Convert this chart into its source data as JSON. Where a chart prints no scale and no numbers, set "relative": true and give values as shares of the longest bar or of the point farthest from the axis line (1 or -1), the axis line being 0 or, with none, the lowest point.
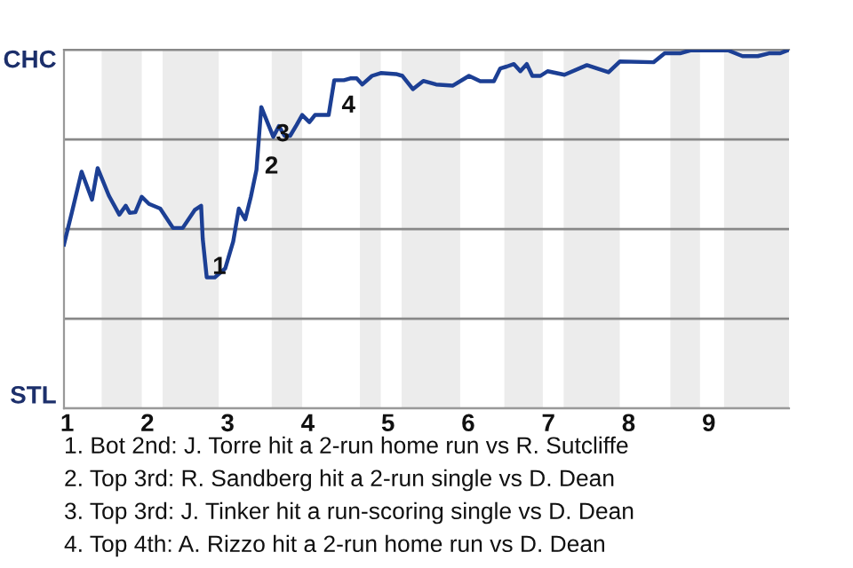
{
  "chart_data": {
    "type": "line",
    "relative": true,
    "x": [
      0.96,
      1.06,
      1.18,
      1.31,
      1.38,
      1.52,
      1.65,
      1.73,
      1.78,
      1.85,
      1.93,
      2.02,
      2.16,
      2.32,
      2.44,
      2.59,
      2.67,
      2.69,
      2.74,
      2.84,
      2.97,
      3.07,
      3.14,
      3.22,
      3.29,
      3.36,
      3.42,
      3.51,
      3.57,
      3.64,
      3.71,
      3.78,
      3.86,
      3.93,
      4.02,
      4.09,
      4.26,
      4.33,
      4.45,
      4.53,
      4.61,
      4.68,
      4.8,
      4.91,
      5.1,
      5.18,
      5.31,
      5.44,
      5.6,
      5.81,
      6.01,
      6.15,
      6.32,
      6.4,
      6.48,
      6.57,
      6.65,
      6.73,
      6.8,
      6.9,
      6.99,
      7.2,
      7.48,
      7.75,
      7.89,
      8.31,
      8.45,
      8.64,
      8.77,
      9.24,
      9.42,
      9.61,
      9.75,
      9.89,
      10.0
    ],
    "series": [
      {
        "color": "#1c3f94",
        "values": [
          0.457,
          0.548,
          0.66,
          0.582,
          0.67,
          0.593,
          0.54,
          0.565,
          0.545,
          0.547,
          0.59,
          0.57,
          0.557,
          0.503,
          0.503,
          0.553,
          0.565,
          0.473,
          0.365,
          0.365,
          0.39,
          0.465,
          0.557,
          0.527,
          0.59,
          0.665,
          0.84,
          0.79,
          0.757,
          0.787,
          0.76,
          0.76,
          0.79,
          0.818,
          0.798,
          0.818,
          0.818,
          0.915,
          0.915,
          0.92,
          0.92,
          0.903,
          0.927,
          0.935,
          0.932,
          0.927,
          0.89,
          0.913,
          0.903,
          0.9,
          0.927,
          0.912,
          0.912,
          0.948,
          0.953,
          0.96,
          0.94,
          0.96,
          0.927,
          0.927,
          0.94,
          0.93,
          0.957,
          0.937,
          0.967,
          0.965,
          0.99,
          0.99,
          0.998,
          0.998,
          0.982,
          0.982,
          0.99,
          0.99,
          1.0
        ]
      }
    ],
    "xlim": [
      0.96,
      10
    ],
    "xticks": [
      1,
      2,
      3,
      4,
      5,
      6,
      7,
      8,
      9
    ],
    "grid": "y",
    "bands": [
      {
        "axis": "x",
        "from": 1.43,
        "to": 1.93,
        "color": "#ececec"
      },
      {
        "axis": "x",
        "from": 2.19,
        "to": 2.89,
        "color": "#ececec"
      },
      {
        "axis": "x",
        "from": 3.55,
        "to": 3.93,
        "color": "#ececec"
      },
      {
        "axis": "x",
        "from": 4.65,
        "to": 4.91,
        "color": "#ececec"
      },
      {
        "axis": "x",
        "from": 5.17,
        "to": 5.9,
        "color": "#ececec"
      },
      {
        "axis": "x",
        "from": 6.45,
        "to": 6.93,
        "color": "#ececec"
      },
      {
        "axis": "x",
        "from": 7.19,
        "to": 7.89,
        "color": "#ececec"
      },
      {
        "axis": "x",
        "from": 8.52,
        "to": 8.89,
        "color": "#ececec"
      },
      {
        "axis": "x",
        "from": 9.19,
        "to": 10.0,
        "color": "#ececec"
      }
    ],
    "annotations": [
      "CHC",
      "STL",
      {
        "text": "1",
        "x": 2.72,
        "y": 0.42
      },
      {
        "text": "2",
        "x": 3.37,
        "y": 0.7
      },
      {
        "text": "3",
        "x": 3.51,
        "y": 0.79
      },
      {
        "text": "4",
        "x": 4.33,
        "y": 0.87
      },
      "1. Bot 2nd: J. Torre hit a 2-run home run vs R. Sutcliffe",
      "2. Top 3rd: R. Sandberg hit a 2-run single vs D. Dean",
      "3. Top 3rd: J. Tinker hit a run-scoring single vs D. Dean",
      "4. Top 4th: A. Rizzo hit a 2-run home run vs D. Dean"
    ]
  }
}
